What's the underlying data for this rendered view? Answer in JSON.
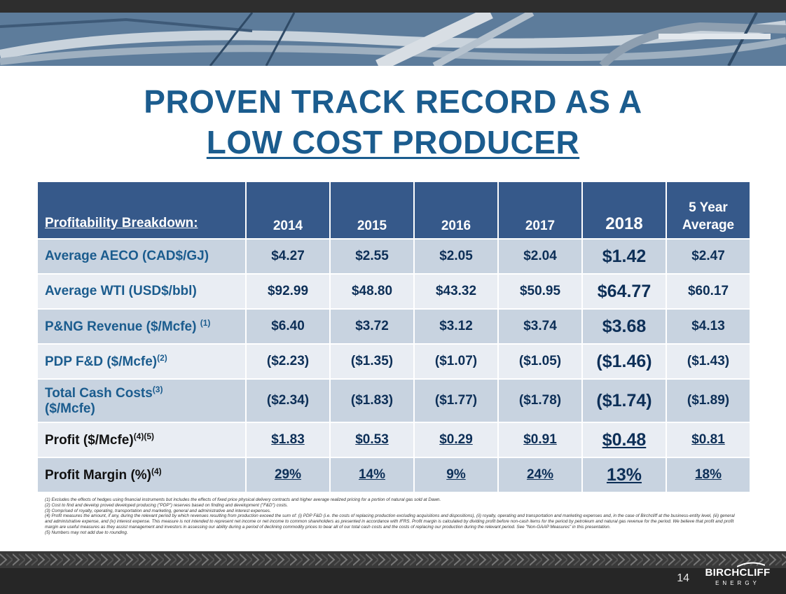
{
  "title": {
    "line1": "PROVEN TRACK RECORD AS A",
    "line2": "LOW COST PRODUCER"
  },
  "table": {
    "header": {
      "label": "Profitability Breakdown:",
      "years": [
        "2014",
        "2015",
        "2016",
        "2017",
        "2018"
      ],
      "avg_line1": "5 Year",
      "avg_line2": "Average"
    },
    "rows": [
      {
        "label": "Average AECO (CAD$/GJ)",
        "sup": "",
        "values": [
          "$4.27",
          "$2.55",
          "$2.05",
          "$2.04",
          "$1.42",
          "$2.47"
        ]
      },
      {
        "label": "Average WTI (USD$/bbl)",
        "sup": "",
        "values": [
          "$92.99",
          "$48.80",
          "$43.32",
          "$50.95",
          "$64.77",
          "$60.17"
        ]
      },
      {
        "label": "P&NG Revenue ($/Mcfe)",
        "sup": "(1)",
        "values": [
          "$6.40",
          "$3.72",
          "$3.12",
          "$3.74",
          "$3.68",
          "$4.13"
        ]
      },
      {
        "label": "PDP F&D ($/Mcfe)",
        "sup": "(2)",
        "values": [
          "($2.23)",
          "($1.35)",
          "($1.07)",
          "($1.05)",
          "($1.46)",
          "($1.43)"
        ]
      },
      {
        "label": "Total Cash Costs",
        "sup": "(3)",
        "label2": "($/Mcfe)",
        "values": [
          "($2.34)",
          "($1.83)",
          "($1.77)",
          "($1.78)",
          "($1.74)",
          "($1.89)"
        ]
      },
      {
        "label": "Profit ($/Mcfe)",
        "sup": "(4)(5)",
        "values": [
          "$1.83",
          "$0.53",
          "$0.29",
          "$0.91",
          "$0.48",
          "$0.81"
        ]
      },
      {
        "label": "Profit Margin (%)",
        "sup": "(4)",
        "values": [
          "29%",
          "14%",
          "9%",
          "24%",
          "13%",
          "18%"
        ]
      }
    ]
  },
  "footnotes": [
    "(1) Excludes the effects of hedges using financial instruments but includes the effects of fixed price physical delivery contracts and higher average realized pricing for a portion of natural gas sold at Dawn.",
    "(2) Cost to find and develop proved developed producing (\"PDP\") reserves based on finding and development (\"F&D\") costs.",
    "(3) Comprised of royalty, operating, transportation and marketing, general and administrative and interest expenses.",
    "(4) Profit measures the amount, if any, during the relevant period by which revenues resulting from production exceed the sum of: (i) PDP F&D (i.e. the costs of replacing production excluding acquisitions and dispositions), (ii) royalty, operating and transportation and marketing expenses and, in the case of Birchcliff at the business-entity level, (iii) general and administrative expense, and (iv) interest expense. This measure is not intended to represent net income or net income to common shareholders as presented in accordance with IFRS. Profit margin is calculated by dividing profit before non-cash items for the period by petroleum and natural gas revenue for the period. We believe that profit and profit margin are useful measures as they assist management and investors in assessing our ability during a period of declining commodity prices to bear all of our total cash costs and the costs of replacing our production during the relevant period. See \"Non-GAAP Measures\" in this presentation.",
    "(5) Numbers may not add due to rounding."
  ],
  "footer": {
    "page_number": "14",
    "logo_brand": "BIRCHCLIFF",
    "logo_sub": "ENERGY"
  }
}
